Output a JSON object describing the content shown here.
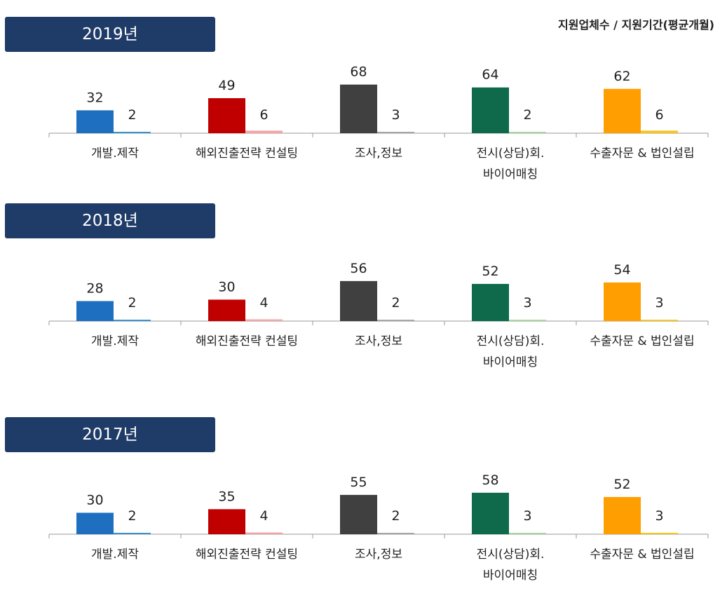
{
  "legend_text": "지원업체수 / 지원기간(평균개월)",
  "colors": {
    "badge": "#1f3b68",
    "categories": [
      {
        "primary": "#1f6fc0",
        "secondary": "#3a94cc"
      },
      {
        "primary": "#c00000",
        "secondary": "#f2a5a5"
      },
      {
        "primary": "#404040",
        "secondary": "#a6a6a6"
      },
      {
        "primary": "#0e6a4a",
        "secondary": "#a9d79d"
      },
      {
        "primary": "#ff9e00",
        "secondary": "#f7c61c"
      }
    ]
  },
  "chart_data": [
    {
      "type": "bar",
      "title": "2019년",
      "categories": [
        "개발.제작",
        "해외진출전략 컨설팅",
        "조사,정보",
        "전시(상담)회.\n바이어매칭",
        "수출자문 & 법인설립"
      ],
      "series": [
        {
          "name": "지원업체수",
          "values": [
            32,
            49,
            68,
            64,
            62
          ]
        },
        {
          "name": "지원기간(평균개월)",
          "values": [
            2,
            6,
            3,
            2,
            6
          ]
        }
      ]
    },
    {
      "type": "bar",
      "title": "2018년",
      "categories": [
        "개발.제작",
        "해외진출전략 컨설팅",
        "조사,정보",
        "전시(상담)회.\n바이어매칭",
        "수출자문 & 법인설립"
      ],
      "series": [
        {
          "name": "지원업체수",
          "values": [
            28,
            30,
            56,
            52,
            54
          ]
        },
        {
          "name": "지원기간(평균개월)",
          "values": [
            2,
            4,
            2,
            3,
            3
          ]
        }
      ]
    },
    {
      "type": "bar",
      "title": "2017년",
      "categories": [
        "개발.제작",
        "해외진출전략 컨설팅",
        "조사,정보",
        "전시(상담)회.\n바이어매칭",
        "수출자문 & 법인설립"
      ],
      "series": [
        {
          "name": "지원업체수",
          "values": [
            30,
            35,
            55,
            58,
            52
          ]
        },
        {
          "name": "지원기간(평균개월)",
          "values": [
            2,
            4,
            2,
            3,
            3
          ]
        }
      ]
    }
  ]
}
